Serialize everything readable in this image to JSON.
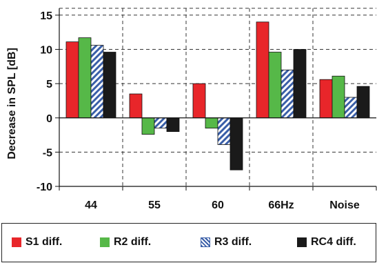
{
  "chart_data": {
    "type": "bar",
    "title": "",
    "xlabel": "",
    "ylabel": "Decrease in SPL [dB]",
    "ylim": [
      -10,
      16
    ],
    "yticks": [
      15,
      10,
      5,
      0,
      -5,
      -10
    ],
    "grid": true,
    "legend_position": "bottom",
    "categories": [
      "44",
      "55",
      "60",
      "66Hz",
      "Noise"
    ],
    "series": [
      {
        "name": "S1 diff.",
        "color": "#e8262a",
        "pattern": "solid",
        "values": [
          11.1,
          3.5,
          5.0,
          14.0,
          5.6
        ]
      },
      {
        "name": "R2 diff.",
        "color": "#56b848",
        "pattern": "solid",
        "values": [
          11.7,
          -2.4,
          -1.5,
          9.6,
          6.1
        ]
      },
      {
        "name": "R3 diff.",
        "color": "#3a5fa8",
        "pattern": "hatched",
        "values": [
          10.6,
          -1.5,
          -3.9,
          7.0,
          3.0
        ]
      },
      {
        "name": "RC4 diff.",
        "color": "#1a1a1a",
        "pattern": "solid",
        "values": [
          9.6,
          -2.0,
          -7.6,
          10.0,
          4.6
        ]
      }
    ]
  }
}
